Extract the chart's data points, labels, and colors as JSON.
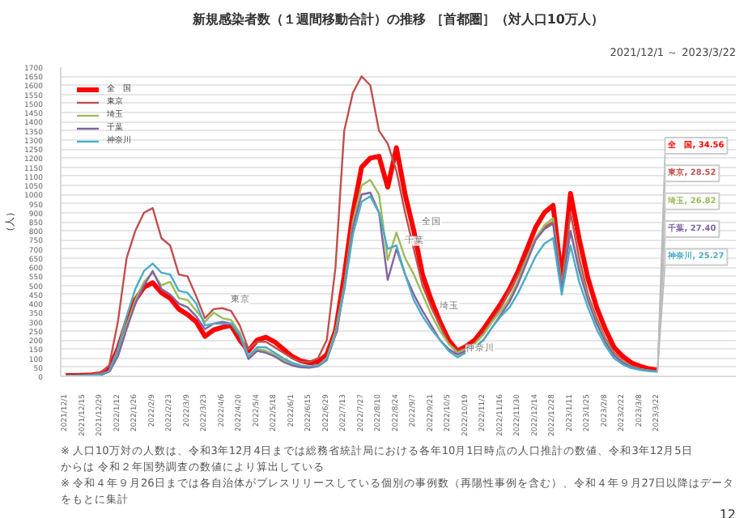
{
  "chart_data": {
    "type": "line",
    "title": "新規感染者数（１週間移動合計）の推移 ［首都圏］（対人口10万人）",
    "subtitle": "2021/12/1 ～ 2023/3/22",
    "ylabel": "（人）",
    "x": [
      "2021-12-01",
      "2021-12-08",
      "2021-12-15",
      "2021-12-22",
      "2021-12-29",
      "2022-01-05",
      "2022-01-12",
      "2022-01-19",
      "2022-01-26",
      "2022-02-02",
      "2022-02-09",
      "2022-02-16",
      "2022-02-23",
      "2022-03-02",
      "2022-03-09",
      "2022-03-16",
      "2022-03-23",
      "2022-03-30",
      "2022-04-06",
      "2022-04-13",
      "2022-04-20",
      "2022-04-27",
      "2022-05-04",
      "2022-05-11",
      "2022-05-18",
      "2022-05-25",
      "2022-06-01",
      "2022-06-08",
      "2022-06-15",
      "2022-06-22",
      "2022-06-29",
      "2022-07-06",
      "2022-07-13",
      "2022-07-20",
      "2022-07-27",
      "2022-08-03",
      "2022-08-10",
      "2022-08-17",
      "2022-08-24",
      "2022-08-31",
      "2022-09-07",
      "2022-09-14",
      "2022-09-21",
      "2022-09-28",
      "2022-10-05",
      "2022-10-12",
      "2022-10-19",
      "2022-10-26",
      "2022-11-02",
      "2022-11-09",
      "2022-11-16",
      "2022-11-23",
      "2022-11-30",
      "2022-12-07",
      "2022-12-14",
      "2022-12-21",
      "2022-12-28",
      "2023-01-04",
      "2023-01-11",
      "2023-01-18",
      "2023-01-25",
      "2023-02-01",
      "2023-02-08",
      "2023-02-15",
      "2023-02-22",
      "2023-03-01",
      "2023-03-08",
      "2023-03-15",
      "2023-03-22"
    ],
    "series": [
      {
        "name": "全　国",
        "color": "#ff0000",
        "values": [
          5,
          5,
          6,
          8,
          15,
          40,
          150,
          300,
          420,
          490,
          515,
          460,
          430,
          370,
          340,
          300,
          220,
          255,
          270,
          280,
          200,
          140,
          200,
          215,
          190,
          150,
          110,
          85,
          75,
          80,
          120,
          250,
          550,
          900,
          1150,
          1200,
          1210,
          1040,
          1257,
          1000,
          800,
          560,
          420,
          300,
          200,
          140,
          165,
          200,
          260,
          330,
          400,
          480,
          580,
          700,
          820,
          900,
          940,
          530,
          1006,
          755,
          540,
          380,
          260,
          160,
          110,
          75,
          55,
          42,
          34.56
        ],
        "value_labels": [
          null,
          null,
          null,
          null,
          null,
          null,
          null,
          null,
          null,
          null,
          null,
          null,
          null,
          null,
          null,
          null,
          null,
          null,
          null,
          null,
          null,
          null,
          null,
          null,
          null,
          null,
          null,
          null,
          null,
          null,
          null,
          null,
          null,
          null,
          null,
          null,
          null,
          null,
          null,
          null,
          null,
          null,
          null,
          null,
          null,
          null,
          null,
          null,
          null,
          null,
          null,
          null,
          null,
          null,
          null,
          null,
          null,
          null,
          null,
          null,
          null,
          null,
          null,
          null,
          null,
          null,
          null,
          null,
          "全　国, 34.56"
        ]
      },
      {
        "name": "東京",
        "color": "#c0504d",
        "values": [
          5,
          5,
          7,
          10,
          20,
          60,
          300,
          650,
          800,
          900,
          925,
          760,
          720,
          560,
          550,
          440,
          320,
          370,
          375,
          360,
          280,
          150,
          190,
          190,
          160,
          130,
          100,
          80,
          80,
          100,
          200,
          600,
          1350,
          1560,
          1650,
          1600,
          1350,
          1280,
          1130,
          900,
          700,
          500,
          380,
          280,
          180,
          140,
          155,
          180,
          240,
          310,
          380,
          470,
          560,
          660,
          760,
          820,
          850,
          500,
          900,
          650,
          450,
          320,
          210,
          130,
          85,
          55,
          40,
          32,
          28.52
        ],
        "value_labels": [
          null,
          null,
          null,
          null,
          null,
          null,
          null,
          null,
          null,
          null,
          null,
          null,
          null,
          null,
          null,
          null,
          null,
          null,
          null,
          null,
          null,
          null,
          null,
          null,
          null,
          null,
          null,
          null,
          null,
          null,
          null,
          null,
          null,
          null,
          null,
          null,
          null,
          null,
          null,
          null,
          null,
          null,
          null,
          null,
          null,
          null,
          null,
          null,
          null,
          null,
          null,
          null,
          null,
          null,
          null,
          null,
          null,
          null,
          null,
          null,
          null,
          null,
          null,
          null,
          null,
          null,
          null,
          null,
          "東京, 28.52"
        ]
      },
      {
        "name": "埼玉",
        "color": "#9bbb59",
        "values": [
          null,
          null,
          null,
          null,
          null,
          25,
          120,
          280,
          420,
          520,
          570,
          500,
          520,
          430,
          420,
          360,
          300,
          350,
          320,
          310,
          240,
          110,
          150,
          140,
          120,
          90,
          65,
          55,
          50,
          60,
          100,
          250,
          500,
          850,
          1050,
          1080,
          1000,
          640,
          790,
          650,
          560,
          450,
          340,
          250,
          180,
          130,
          150,
          180,
          230,
          300,
          360,
          430,
          530,
          650,
          760,
          830,
          870,
          500,
          800,
          600,
          430,
          300,
          200,
          120,
          80,
          55,
          40,
          32,
          26.82
        ],
        "value_labels": [
          null,
          null,
          null,
          null,
          null,
          null,
          null,
          null,
          null,
          null,
          null,
          null,
          null,
          null,
          null,
          null,
          null,
          null,
          null,
          null,
          null,
          null,
          null,
          null,
          null,
          null,
          null,
          null,
          null,
          null,
          null,
          null,
          null,
          null,
          null,
          null,
          null,
          null,
          null,
          null,
          null,
          null,
          null,
          null,
          null,
          null,
          null,
          null,
          null,
          null,
          null,
          null,
          null,
          null,
          null,
          null,
          null,
          null,
          null,
          null,
          null,
          null,
          null,
          null,
          null,
          null,
          null,
          null,
          "埼玉, 26.82"
        ]
      },
      {
        "name": "千葉",
        "color": "#8064a2",
        "values": [
          3,
          3,
          4,
          5,
          8,
          25,
          110,
          260,
          400,
          500,
          580,
          480,
          450,
          400,
          380,
          330,
          260,
          290,
          300,
          290,
          220,
          95,
          140,
          130,
          110,
          80,
          60,
          50,
          48,
          55,
          90,
          230,
          480,
          820,
          1000,
          1010,
          900,
          530,
          700,
          560,
          450,
          360,
          280,
          200,
          150,
          120,
          140,
          160,
          200,
          270,
          340,
          410,
          510,
          630,
          750,
          810,
          840,
          480,
          800,
          580,
          420,
          290,
          190,
          115,
          75,
          52,
          38,
          31,
          27.4
        ],
        "value_labels": [
          null,
          null,
          null,
          null,
          null,
          null,
          null,
          null,
          null,
          null,
          null,
          null,
          null,
          null,
          null,
          null,
          null,
          null,
          null,
          null,
          null,
          null,
          null,
          null,
          null,
          null,
          null,
          null,
          null,
          null,
          null,
          null,
          null,
          null,
          null,
          null,
          null,
          null,
          null,
          null,
          null,
          null,
          null,
          null,
          null,
          null,
          null,
          null,
          null,
          null,
          null,
          null,
          null,
          null,
          null,
          null,
          null,
          null,
          null,
          null,
          null,
          null,
          null,
          null,
          null,
          null,
          null,
          null,
          "千葉, 27.40"
        ]
      },
      {
        "name": "神奈川",
        "color": "#4bacc6",
        "values": [
          4,
          4,
          5,
          6,
          10,
          30,
          150,
          330,
          480,
          580,
          620,
          570,
          560,
          470,
          460,
          400,
          280,
          290,
          290,
          290,
          230,
          110,
          160,
          160,
          130,
          100,
          75,
          60,
          55,
          60,
          95,
          230,
          470,
          780,
          960,
          990,
          900,
          700,
          720,
          560,
          420,
          330,
          260,
          200,
          140,
          105,
          130,
          160,
          200,
          270,
          330,
          380,
          460,
          560,
          660,
          730,
          760,
          450,
          720,
          520,
          380,
          260,
          170,
          100,
          65,
          45,
          35,
          29,
          25.27
        ],
        "value_labels": [
          null,
          null,
          null,
          null,
          null,
          null,
          null,
          null,
          null,
          null,
          null,
          null,
          null,
          null,
          null,
          null,
          null,
          null,
          null,
          null,
          null,
          null,
          null,
          null,
          null,
          null,
          null,
          null,
          null,
          null,
          null,
          null,
          null,
          null,
          null,
          null,
          null,
          null,
          null,
          null,
          null,
          null,
          null,
          null,
          null,
          null,
          null,
          null,
          null,
          null,
          null,
          null,
          null,
          null,
          null,
          null,
          null,
          null,
          null,
          null,
          null,
          null,
          null,
          null,
          null,
          null,
          null,
          null,
          "神奈川, 25.27"
        ]
      }
    ],
    "xlim": [
      "2021-11-27",
      "2023-05-24"
    ],
    "xticks": [
      {
        "value": "2021-12-01",
        "label": "2021/12/1"
      },
      {
        "value": "2021-12-15",
        "label": "2021/12/15"
      },
      {
        "value": "2021-12-29",
        "label": "2021/12/29"
      },
      {
        "value": "2022-01-12",
        "label": "2022/1/12"
      },
      {
        "value": "2022-01-26",
        "label": "2022/1/26"
      },
      {
        "value": "2022-02-09",
        "label": "2022/2/9"
      },
      {
        "value": "2022-02-23",
        "label": "2022/2/23"
      },
      {
        "value": "2022-03-09",
        "label": "2022/3/9"
      },
      {
        "value": "2022-03-23",
        "label": "2022/3/23"
      },
      {
        "value": "2022-04-06",
        "label": "2022/4/6"
      },
      {
        "value": "2022-04-20",
        "label": "2022/4/20"
      },
      {
        "value": "2022-05-04",
        "label": "2022/5/4"
      },
      {
        "value": "2022-05-18",
        "label": "2022/5/18"
      },
      {
        "value": "2022-06-01",
        "label": "2022/6/1"
      },
      {
        "value": "2022-06-15",
        "label": "2022/6/15"
      },
      {
        "value": "2022-06-29",
        "label": "2022/6/29"
      },
      {
        "value": "2022-07-13",
        "label": "2022/7/13"
      },
      {
        "value": "2022-07-27",
        "label": "2022/7/27"
      },
      {
        "value": "2022-08-10",
        "label": "2022/8/10"
      },
      {
        "value": "2022-08-24",
        "label": "2022/8/24"
      },
      {
        "value": "2022-09-07",
        "label": "2022/9/7"
      },
      {
        "value": "2022-09-21",
        "label": "2022/9/21"
      },
      {
        "value": "2022-10-05",
        "label": "2022/10/5"
      },
      {
        "value": "2022-10-19",
        "label": "2022/10/19"
      },
      {
        "value": "2022-11-02",
        "label": "2022/11/2"
      },
      {
        "value": "2022-11-16",
        "label": "2022/11/16"
      },
      {
        "value": "2022-11-30",
        "label": "2022/11/30"
      },
      {
        "value": "2022-12-14",
        "label": "2022/12/14"
      },
      {
        "value": "2022-12-28",
        "label": "2022/12/28"
      },
      {
        "value": "2023-01-11",
        "label": "2023/1/11"
      },
      {
        "value": "2023-01-25",
        "label": "2023/1/25"
      },
      {
        "value": "2023-02-08",
        "label": "2023/2/8"
      },
      {
        "value": "2023-02-22",
        "label": "2023/2/22"
      },
      {
        "value": "2023-03-08",
        "label": "2023/3/8"
      },
      {
        "value": "2023-03-22",
        "label": "2023/3/22"
      }
    ],
    "ylim": [
      0,
      1700
    ],
    "yticks": [
      0,
      50,
      100,
      150,
      200,
      250,
      300,
      350,
      400,
      450,
      500,
      550,
      600,
      650,
      700,
      750,
      800,
      850,
      900,
      950,
      1000,
      1050,
      1100,
      1150,
      1200,
      1250,
      1300,
      1350,
      1400,
      1450,
      1500,
      1550,
      1600,
      1650,
      1700
    ],
    "grid": "y",
    "legend": "top left",
    "annotations": [
      {
        "text": "東京",
        "x": "2022-04-06",
        "y": 375
      },
      {
        "text": "全国",
        "x": "2022-09-07",
        "y": 800
      },
      {
        "text": "千葉",
        "x": "2022-08-24",
        "y": 700
      },
      {
        "text": "埼玉",
        "x": "2022-09-21",
        "y": 340
      },
      {
        "text": "神奈川",
        "x": "2022-10-12",
        "y": 105
      },
      "※ 人口10万対の人数は、令和3年12月4日までは総務省統計局における各年10月1日時点の人口推計の数値、令和3年12月5日からは 令和２年国勢調査の数値により算出している",
      "※ 令和４年９月26日までは各自治体がプレスリリースしている個別の事例数（再陽性事例を含む）、令和４年９月27日以降はデータをもとに集計",
      "12"
    ]
  }
}
